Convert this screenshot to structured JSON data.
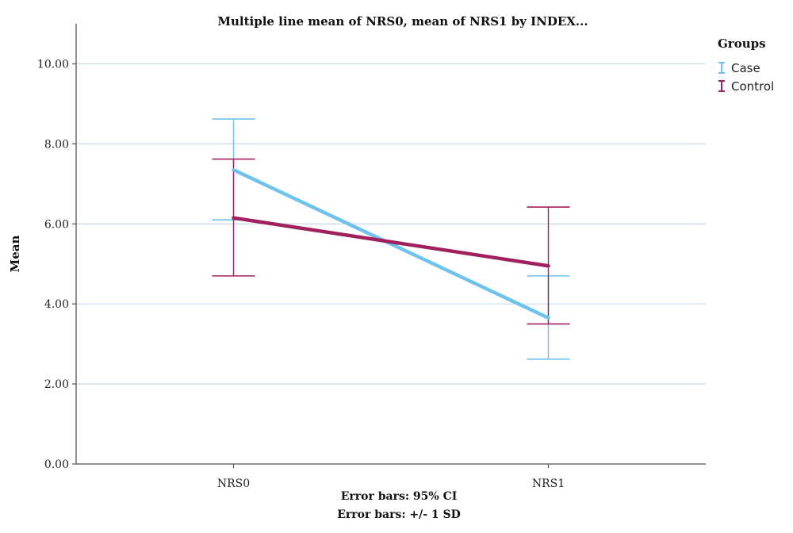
{
  "chart_data": {
    "type": "line",
    "title": "Multiple line mean of NRS0, mean of NRS1 by INDEX...",
    "ylabel": "Mean",
    "xlabel": "",
    "categories": [
      "NRS0",
      "NRS1"
    ],
    "ylim": [
      0,
      11
    ],
    "yticks": [
      0,
      2,
      4,
      6,
      8,
      10
    ],
    "ytick_labels": [
      "0.00",
      "2.00",
      "4.00",
      "6.00",
      "8.00",
      "10.00"
    ],
    "grid": true,
    "legend": {
      "title": "Groups",
      "position": "top-right"
    },
    "series": [
      {
        "name": "Case",
        "color": "#6ec3ec",
        "values": [
          7.35,
          3.65
        ],
        "error_low": [
          6.1,
          2.62
        ],
        "error_high": [
          8.62,
          4.7
        ]
      },
      {
        "name": "Control",
        "color": "#a0215e",
        "values": [
          6.15,
          4.95
        ],
        "error_low": [
          4.7,
          3.5
        ],
        "error_high": [
          7.62,
          6.42
        ]
      }
    ],
    "footnotes": [
      "Error bars: 95% CI",
      "Error bars: +/- 1 SD"
    ]
  }
}
